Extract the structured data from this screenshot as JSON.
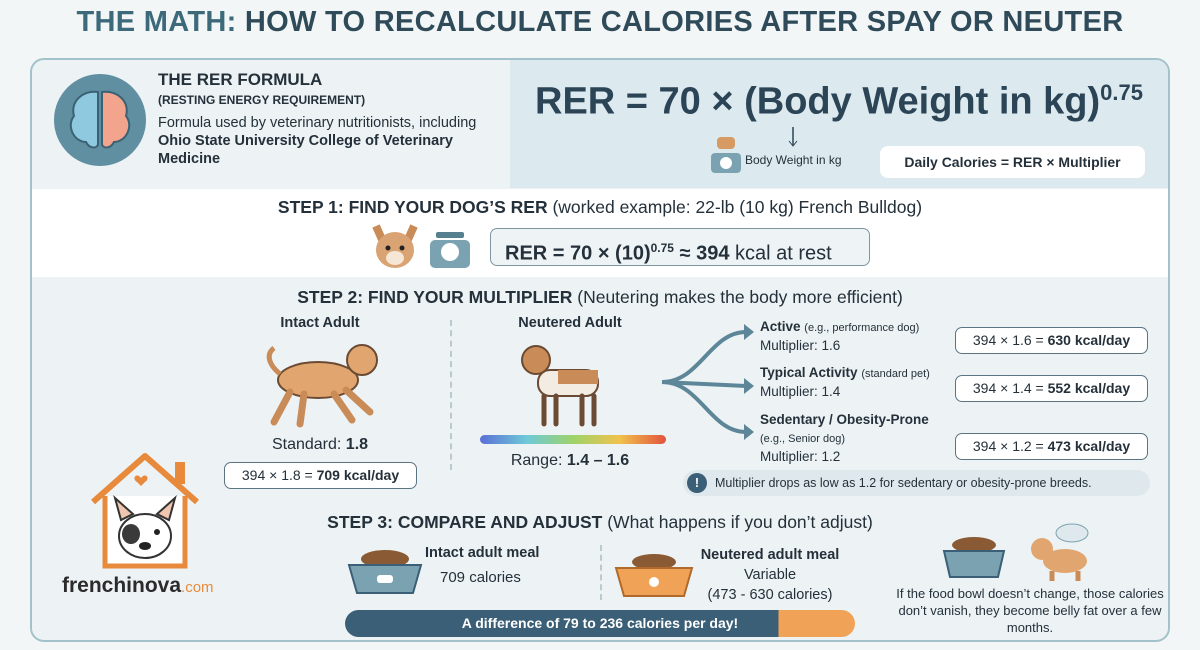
{
  "title": {
    "prefix": "THE MATH:",
    "rest": "HOW TO RECALCULATE CALORIES AFTER SPAY OR NEUTER"
  },
  "formula": {
    "heading": "THE RER FORMULA",
    "subheading": "(RESTING ENERGY REQUIREMENT)",
    "desc": "Formula used by veterinary nutritionists, including",
    "source": "Ohio State University College of Veterinary Medicine",
    "equation": "RER = 70 × (Body Weight in kg)",
    "exponent": "0.75",
    "weight_label": "Body Weight in kg",
    "daily": "Daily Calories = RER × Multiplier"
  },
  "step1": {
    "heading": "STEP 1: FIND YOUR DOG’S RER",
    "note": "(worked example: 22-lb (10 kg) French Bulldog)",
    "equation": "RER = 70 × (10)",
    "exponent": "0.75",
    "approx": "≈ 394",
    "unit": "kcal at rest"
  },
  "step2": {
    "heading": "STEP 2: FIND YOUR MULTIPLIER",
    "note": "(Neutering makes the body more efficient)",
    "intact": {
      "label": "Intact Adult",
      "standard_label": "Standard:",
      "standard": "1.8",
      "calc": "394 × 1.8 =",
      "result": "709 kcal/day"
    },
    "neutered": {
      "label": "Neutered Adult",
      "range_label": "Range:",
      "range": "1.4 – 1.6"
    },
    "levels": [
      {
        "name": "Active",
        "example": "(e.g., performance dog)",
        "multiplier": "Multiplier: 1.6",
        "calc": "394 × 1.6 =",
        "result": "630 kcal/day"
      },
      {
        "name": "Typical Activity",
        "example": "(standard pet)",
        "multiplier": "Multiplier: 1.4",
        "calc": "394 × 1.4 =",
        "result": "552 kcal/day"
      },
      {
        "name": "Sedentary / Obesity-Prone",
        "example": "(e.g., Senior dog)",
        "multiplier": "Multiplier: 1.2",
        "calc": "394 × 1.2 =",
        "result": "473 kcal/day"
      }
    ],
    "warning": "Multiplier drops as low as 1.2 for sedentary or obesity-prone breeds."
  },
  "step3": {
    "heading": "STEP 3: COMPARE AND ADJUST",
    "note": "(What happens if you don’t adjust)",
    "intact_meal": {
      "label": "Intact adult meal",
      "value": "709 calories"
    },
    "neutered_meal": {
      "label": "Neutered adult meal",
      "value": "Variable",
      "range": "(473 - 630 calories)"
    },
    "difference": "A difference of 79 to 236 calories per day!",
    "consequence": "If the food bowl doesn’t change, those calories don’t vanish, they become belly fat over a few months."
  },
  "brand": {
    "name": "frenchinova",
    "tld": ".com"
  }
}
